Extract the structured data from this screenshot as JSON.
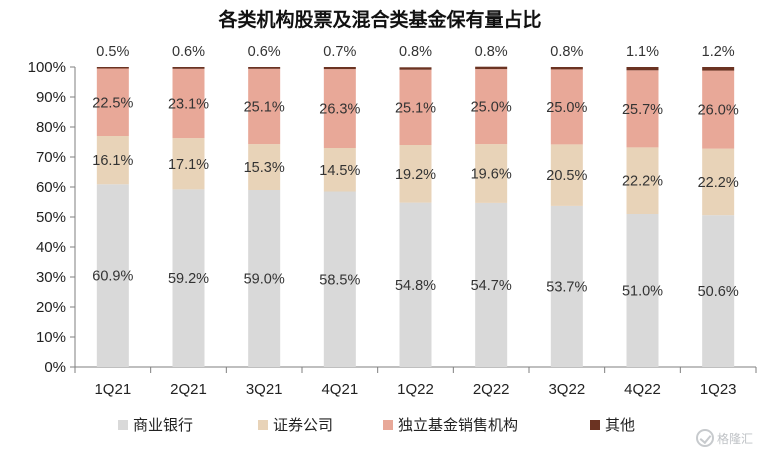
{
  "chart_data": {
    "type": "bar",
    "stacked": true,
    "title": "各类机构股票及混合类基金保有量占比",
    "categories": [
      "1Q21",
      "2Q21",
      "3Q21",
      "4Q21",
      "1Q22",
      "2Q22",
      "3Q22",
      "4Q22",
      "1Q23"
    ],
    "series": [
      {
        "name": "商业银行",
        "color": "#d9d9d9",
        "values": [
          60.9,
          59.2,
          59.0,
          58.5,
          54.8,
          54.7,
          53.7,
          51.0,
          50.6
        ],
        "labels": [
          "60.9%",
          "59.2%",
          "59.0%",
          "58.5%",
          "54.8%",
          "54.7%",
          "53.7%",
          "51.0%",
          "50.6%"
        ]
      },
      {
        "name": "证券公司",
        "color": "#e8d3b8",
        "values": [
          16.1,
          17.1,
          15.3,
          14.5,
          19.2,
          19.6,
          20.5,
          22.2,
          22.2
        ],
        "labels": [
          "16.1%",
          "17.1%",
          "15.3%",
          "14.5%",
          "19.2%",
          "19.6%",
          "20.5%",
          "22.2%",
          "22.2%"
        ]
      },
      {
        "name": "独立基金销售机构",
        "color": "#e8a898",
        "values": [
          22.5,
          23.1,
          25.1,
          26.3,
          25.1,
          25.0,
          25.0,
          25.7,
          26.0
        ],
        "labels": [
          "22.5%",
          "23.1%",
          "25.1%",
          "26.3%",
          "25.1%",
          "25.0%",
          "25.0%",
          "25.7%",
          "26.0%"
        ]
      },
      {
        "name": "其他",
        "color": "#6b3322",
        "values": [
          0.5,
          0.6,
          0.6,
          0.7,
          0.8,
          0.8,
          0.8,
          1.1,
          1.2
        ],
        "labels": [
          "0.5%",
          "0.6%",
          "0.6%",
          "0.7%",
          "0.8%",
          "0.8%",
          "0.8%",
          "1.1%",
          "1.2%"
        ]
      }
    ],
    "ylim": [
      0,
      100
    ],
    "yticks": [
      "0%",
      "10%",
      "20%",
      "30%",
      "40%",
      "50%",
      "60%",
      "70%",
      "80%",
      "90%",
      "100%"
    ],
    "legend_position": "bottom",
    "grid": false
  },
  "watermark": {
    "text": "格隆汇",
    "icon": "check-circle-icon"
  }
}
